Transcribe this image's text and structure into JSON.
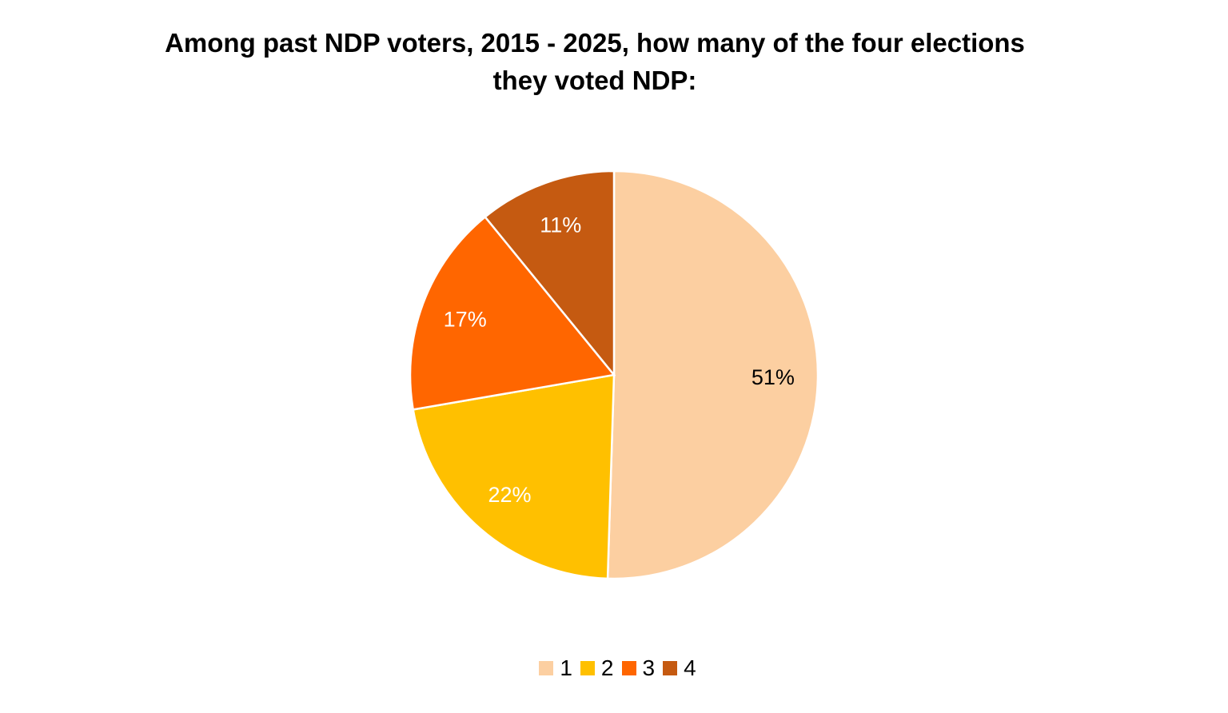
{
  "chart_data": {
    "type": "pie",
    "title_lines": [
      "Among past NDP voters, 2015 - 2025, how many of the four elections",
      "they voted NDP:"
    ],
    "categories": [
      "1",
      "2",
      "3",
      "4"
    ],
    "values": [
      51,
      22,
      17,
      11
    ],
    "labels": [
      "51%",
      "22%",
      "17%",
      "11%"
    ],
    "colors": [
      "#FCCFA1",
      "#FFC000",
      "#FF6600",
      "#C55A11"
    ],
    "label_colors": [
      "#000000",
      "#ffffff",
      "#ffffff",
      "#ffffff"
    ],
    "start_angle": "12 o'clock",
    "direction": "clockwise",
    "legend_position": "bottom"
  }
}
